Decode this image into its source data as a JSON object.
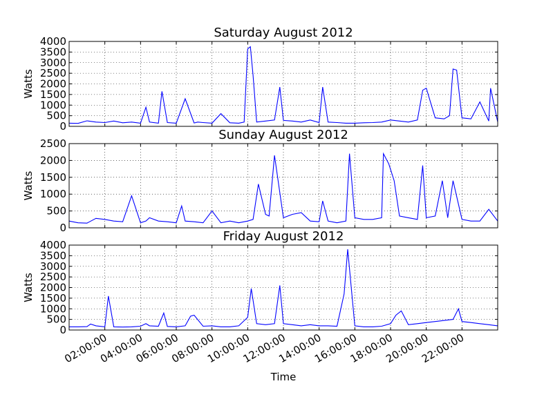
{
  "chart_data": [
    {
      "type": "line",
      "title": "Saturday August 2012",
      "ylabel": "Watts",
      "ylim": [
        0,
        4000
      ],
      "yticks": [
        0,
        500,
        1000,
        1500,
        2000,
        2500,
        3000,
        3500,
        4000
      ],
      "xlim": [
        0,
        24
      ],
      "grid": true,
      "color": "#0000ff",
      "series": [
        {
          "x": [
            0.0,
            0.5,
            1.0,
            1.5,
            2.0,
            2.5,
            3.0,
            3.5,
            4.0,
            4.3,
            4.5,
            5.0,
            5.2,
            5.5,
            6.0,
            6.5,
            7.0,
            7.2,
            7.5,
            8.0,
            8.5,
            9.0,
            9.5,
            9.8,
            10.0,
            10.15,
            10.3,
            10.5,
            11.0,
            11.5,
            11.8,
            12.0,
            12.5,
            13.0,
            13.5,
            14.0,
            14.2,
            14.5,
            15.0,
            15.5,
            16.0,
            16.5,
            17.0,
            17.5,
            18.0,
            18.5,
            19.0,
            19.5,
            19.8,
            20.0,
            20.5,
            21.0,
            21.3,
            21.5,
            21.7,
            22.0,
            22.5,
            23.0,
            23.5,
            23.6,
            24.0
          ],
          "y": [
            150,
            140,
            260,
            200,
            180,
            250,
            170,
            200,
            150,
            900,
            200,
            150,
            1650,
            180,
            150,
            1300,
            160,
            200,
            180,
            150,
            600,
            170,
            150,
            200,
            3650,
            3750,
            2400,
            200,
            250,
            300,
            1850,
            280,
            250,
            200,
            300,
            180,
            1850,
            200,
            180,
            150,
            150,
            170,
            180,
            200,
            300,
            250,
            200,
            300,
            1700,
            1800,
            400,
            350,
            500,
            2700,
            2650,
            400,
            350,
            1150,
            250,
            1800,
            200
          ]
        }
      ]
    },
    {
      "type": "line",
      "title": "Sunday August 2012",
      "ylabel": "Watts",
      "ylim": [
        0,
        2500
      ],
      "yticks": [
        0,
        500,
        1000,
        1500,
        2000,
        2500
      ],
      "xlim": [
        0,
        24
      ],
      "grid": true,
      "color": "#0000ff",
      "series": [
        {
          "x": [
            0.0,
            0.5,
            1.0,
            1.5,
            2.0,
            2.5,
            3.0,
            3.5,
            4.0,
            4.3,
            4.5,
            5.0,
            5.5,
            6.0,
            6.3,
            6.5,
            7.0,
            7.5,
            8.0,
            8.5,
            9.0,
            9.5,
            10.0,
            10.3,
            10.6,
            11.0,
            11.2,
            11.5,
            12.0,
            12.5,
            13.0,
            13.5,
            14.0,
            14.2,
            14.5,
            15.0,
            15.5,
            15.7,
            16.0,
            16.5,
            17.0,
            17.5,
            17.6,
            17.9,
            18.2,
            18.5,
            19.0,
            19.5,
            19.8,
            20.0,
            20.5,
            20.9,
            21.2,
            21.5,
            22.0,
            22.5,
            23.0,
            23.5,
            24.0
          ],
          "y": [
            200,
            150,
            140,
            280,
            250,
            200,
            180,
            950,
            150,
            200,
            300,
            200,
            180,
            150,
            650,
            200,
            180,
            150,
            500,
            150,
            200,
            150,
            200,
            250,
            1300,
            400,
            350,
            2150,
            300,
            400,
            450,
            200,
            180,
            800,
            200,
            150,
            200,
            2200,
            300,
            250,
            250,
            300,
            2200,
            1900,
            1400,
            350,
            300,
            250,
            1850,
            300,
            350,
            1400,
            300,
            1400,
            250,
            200,
            200,
            550,
            200
          ]
        }
      ]
    },
    {
      "type": "line",
      "title": "Friday August 2012",
      "ylabel": "Watts",
      "xlabel": "Time",
      "ylim": [
        0,
        4000
      ],
      "yticks": [
        0,
        500,
        1000,
        1500,
        2000,
        2500,
        3000,
        3500,
        4000
      ],
      "xlim": [
        0,
        24
      ],
      "xticks": [
        2,
        4,
        6,
        8,
        10,
        12,
        14,
        16,
        18,
        20,
        22
      ],
      "xticklabels": [
        "02:00:00",
        "04:00:00",
        "06:00:00",
        "08:00:00",
        "10:00:00",
        "12:00:00",
        "14:00:00",
        "16:00:00",
        "18:00:00",
        "20:00:00",
        "22:00:00"
      ],
      "grid": true,
      "color": "#0000ff",
      "series": [
        {
          "x": [
            0.0,
            0.5,
            1.0,
            1.2,
            1.5,
            2.0,
            2.2,
            2.5,
            3.0,
            3.5,
            4.0,
            4.3,
            4.5,
            5.0,
            5.3,
            5.5,
            6.0,
            6.5,
            6.8,
            7.0,
            7.5,
            8.0,
            8.5,
            9.0,
            9.5,
            10.0,
            10.2,
            10.5,
            11.0,
            11.5,
            11.8,
            12.0,
            12.5,
            13.0,
            13.5,
            14.0,
            14.5,
            15.0,
            15.4,
            15.6,
            16.0,
            16.5,
            17.0,
            17.5,
            18.0,
            18.3,
            18.6,
            19.0,
            19.5,
            20.0,
            20.5,
            21.0,
            21.5,
            21.8,
            22.0,
            22.5,
            23.0,
            23.5,
            24.0
          ],
          "y": [
            150,
            150,
            160,
            280,
            200,
            150,
            1600,
            150,
            140,
            150,
            180,
            300,
            200,
            180,
            800,
            170,
            150,
            200,
            650,
            700,
            180,
            200,
            150,
            150,
            200,
            600,
            1950,
            300,
            250,
            300,
            2100,
            300,
            250,
            200,
            250,
            200,
            200,
            180,
            1700,
            3800,
            200,
            150,
            150,
            180,
            300,
            700,
            900,
            250,
            300,
            350,
            400,
            450,
            500,
            1000,
            400,
            350,
            300,
            250,
            200
          ]
        }
      ]
    }
  ]
}
